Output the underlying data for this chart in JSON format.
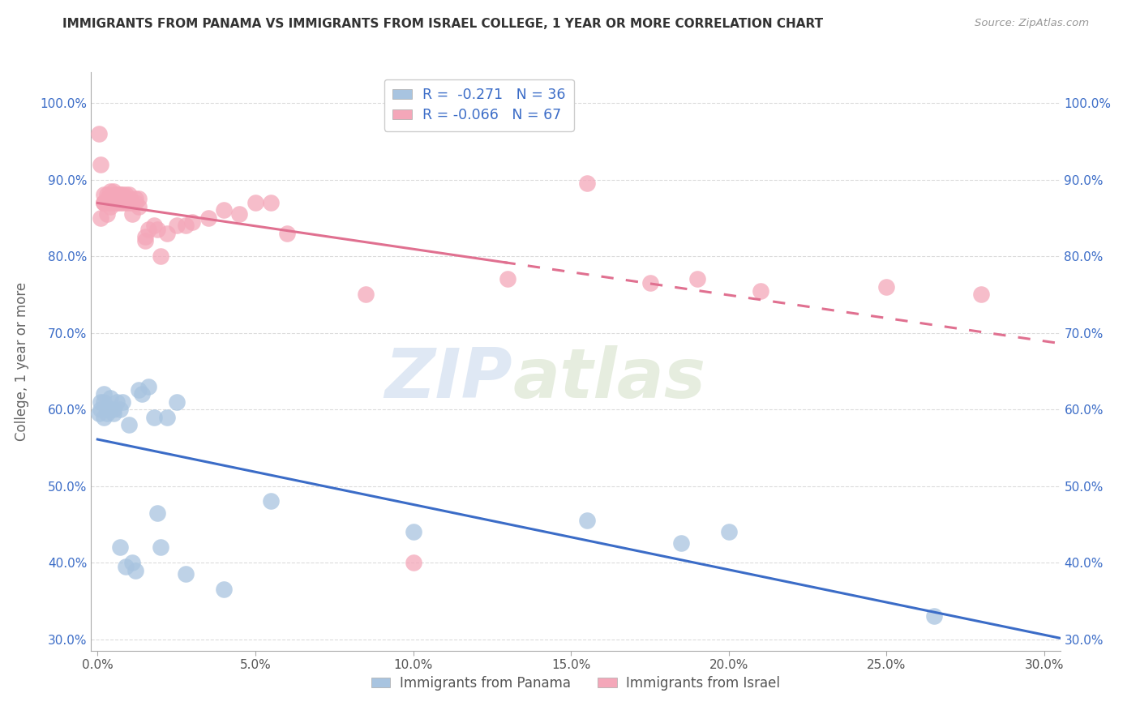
{
  "title": "IMMIGRANTS FROM PANAMA VS IMMIGRANTS FROM ISRAEL COLLEGE, 1 YEAR OR MORE CORRELATION CHART",
  "source": "Source: ZipAtlas.com",
  "xlim": [
    -0.002,
    0.305
  ],
  "ylim": [
    0.285,
    1.04
  ],
  "ylabel": "College, 1 year or more",
  "panama_color": "#a8c4e0",
  "israel_color": "#f4a7b9",
  "panama_line_color": "#3b6cc7",
  "israel_line_color": "#e07090",
  "R_panama": -0.271,
  "N_panama": 36,
  "R_israel": -0.066,
  "N_israel": 67,
  "panama_x": [
    0.0005,
    0.001,
    0.001,
    0.002,
    0.002,
    0.002,
    0.003,
    0.003,
    0.004,
    0.004,
    0.005,
    0.005,
    0.006,
    0.007,
    0.007,
    0.008,
    0.009,
    0.01,
    0.011,
    0.012,
    0.013,
    0.014,
    0.016,
    0.018,
    0.019,
    0.02,
    0.022,
    0.025,
    0.028,
    0.04,
    0.055,
    0.1,
    0.155,
    0.185,
    0.2,
    0.265
  ],
  "panama_y": [
    0.595,
    0.61,
    0.6,
    0.62,
    0.59,
    0.61,
    0.595,
    0.6,
    0.6,
    0.615,
    0.595,
    0.6,
    0.61,
    0.6,
    0.42,
    0.61,
    0.395,
    0.58,
    0.4,
    0.39,
    0.625,
    0.62,
    0.63,
    0.59,
    0.465,
    0.42,
    0.59,
    0.61,
    0.385,
    0.365,
    0.48,
    0.44,
    0.455,
    0.425,
    0.44,
    0.33
  ],
  "israel_x": [
    0.0005,
    0.001,
    0.001,
    0.002,
    0.002,
    0.002,
    0.002,
    0.003,
    0.003,
    0.003,
    0.003,
    0.004,
    0.004,
    0.004,
    0.004,
    0.005,
    0.005,
    0.005,
    0.005,
    0.006,
    0.006,
    0.006,
    0.006,
    0.007,
    0.007,
    0.007,
    0.007,
    0.008,
    0.008,
    0.008,
    0.009,
    0.009,
    0.009,
    0.01,
    0.01,
    0.01,
    0.011,
    0.011,
    0.012,
    0.012,
    0.013,
    0.013,
    0.015,
    0.015,
    0.016,
    0.018,
    0.019,
    0.02,
    0.022,
    0.025,
    0.028,
    0.03,
    0.035,
    0.04,
    0.045,
    0.05,
    0.055,
    0.06,
    0.085,
    0.1,
    0.13,
    0.155,
    0.175,
    0.19,
    0.21,
    0.25,
    0.28
  ],
  "israel_y": [
    0.96,
    0.85,
    0.92,
    0.87,
    0.87,
    0.88,
    0.87,
    0.875,
    0.87,
    0.855,
    0.88,
    0.875,
    0.87,
    0.865,
    0.885,
    0.875,
    0.88,
    0.87,
    0.885,
    0.875,
    0.87,
    0.88,
    0.87,
    0.88,
    0.875,
    0.87,
    0.88,
    0.87,
    0.875,
    0.88,
    0.87,
    0.875,
    0.88,
    0.87,
    0.875,
    0.88,
    0.855,
    0.87,
    0.875,
    0.87,
    0.865,
    0.875,
    0.82,
    0.825,
    0.835,
    0.84,
    0.835,
    0.8,
    0.83,
    0.84,
    0.84,
    0.845,
    0.85,
    0.86,
    0.855,
    0.87,
    0.87,
    0.83,
    0.75,
    0.4,
    0.77,
    0.895,
    0.765,
    0.77,
    0.755,
    0.76,
    0.75
  ],
  "watermark_zip": "ZIP",
  "watermark_atlas": "atlas",
  "legend_text_color": "#3b6cc7",
  "grid_color": "#cccccc",
  "xlabel_ticks": [
    0.0,
    0.05,
    0.1,
    0.15,
    0.2,
    0.25,
    0.3
  ],
  "ylabel_ticks": [
    0.3,
    0.4,
    0.5,
    0.6,
    0.7,
    0.8,
    0.9,
    1.0
  ],
  "trend_split_pct": 0.42
}
